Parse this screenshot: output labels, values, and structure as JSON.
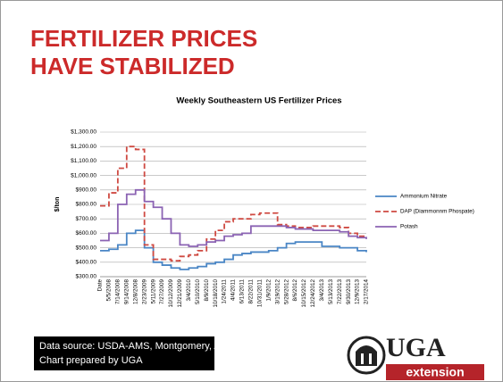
{
  "slide_title": [
    "FERTILIZER PRICES",
    "HAVE STABILIZED"
  ],
  "chart_data": {
    "type": "line",
    "title": "Weekly Southeastern US Fertilizer Prices",
    "ylabel": "$/ton",
    "categories": [
      "Date",
      "5/5/2008",
      "7/14/2008",
      "9/14/2008",
      "12/8/2008",
      "2/23/2009",
      "5/11/2009",
      "7/27/2009",
      "10/12/2009",
      "12/21/2009",
      "3/4/2010",
      "5/10/2010",
      "8/9/2010",
      "10/18/2010",
      "1/24/2011",
      "4/4/2011",
      "6/13/2011",
      "8/22/2011",
      "10/31/2011",
      "1/9/2012",
      "3/19/2012",
      "5/28/2012",
      "8/6/2012",
      "10/15/2012",
      "12/24/2012",
      "3/4/2013",
      "5/13/2013",
      "7/22/2013",
      "9/30/2013",
      "12/9/2013",
      "2/17/2014"
    ],
    "series": [
      {
        "name": "Ammonium Nitrate",
        "color": "#4a86c5",
        "dash": "none",
        "values": [
          480,
          490,
          520,
          600,
          620,
          500,
          400,
          380,
          360,
          350,
          360,
          370,
          390,
          400,
          420,
          450,
          460,
          470,
          470,
          480,
          500,
          530,
          540,
          540,
          540,
          510,
          510,
          500,
          500,
          480,
          470
        ]
      },
      {
        "name": "DAP (Diammonnm Phospate)",
        "color": "#cf4a42",
        "dash": "6 3",
        "values": [
          790,
          880,
          1050,
          1200,
          1180,
          520,
          420,
          420,
          410,
          440,
          450,
          480,
          560,
          620,
          680,
          700,
          700,
          730,
          740,
          740,
          660,
          650,
          640,
          640,
          650,
          650,
          650,
          640,
          600,
          580,
          570
        ]
      },
      {
        "name": "Potash",
        "color": "#8b63b3",
        "dash": "none",
        "values": [
          550,
          600,
          800,
          870,
          900,
          820,
          780,
          700,
          600,
          520,
          510,
          520,
          540,
          550,
          580,
          590,
          600,
          650,
          650,
          650,
          650,
          640,
          630,
          630,
          620,
          620,
          620,
          610,
          580,
          570,
          560
        ]
      }
    ],
    "ylim": [
      300,
      1300
    ],
    "yticks": [
      {
        "value": 300,
        "label": "$300.00"
      },
      {
        "value": 400,
        "label": "$400.00"
      },
      {
        "value": 500,
        "label": "$500.00"
      },
      {
        "value": 600,
        "label": "$600.00"
      },
      {
        "value": 700,
        "label": "$700.00"
      },
      {
        "value": 800,
        "label": "$800.00"
      },
      {
        "value": 900,
        "label": "$900.00"
      },
      {
        "value": 1000,
        "label": "$1,000.00"
      },
      {
        "value": 1100,
        "label": "$1,100.00"
      },
      {
        "value": 1200,
        "label": "$1,200.00"
      },
      {
        "value": 1300,
        "label": "$1,300.00"
      }
    ],
    "grid": true,
    "legend": "right"
  },
  "source": [
    "Data source: USDA-AMS, Montgomery, AL",
    "Chart prepared by UGA"
  ],
  "logo": {
    "name": "UGA",
    "sub": "extension"
  }
}
